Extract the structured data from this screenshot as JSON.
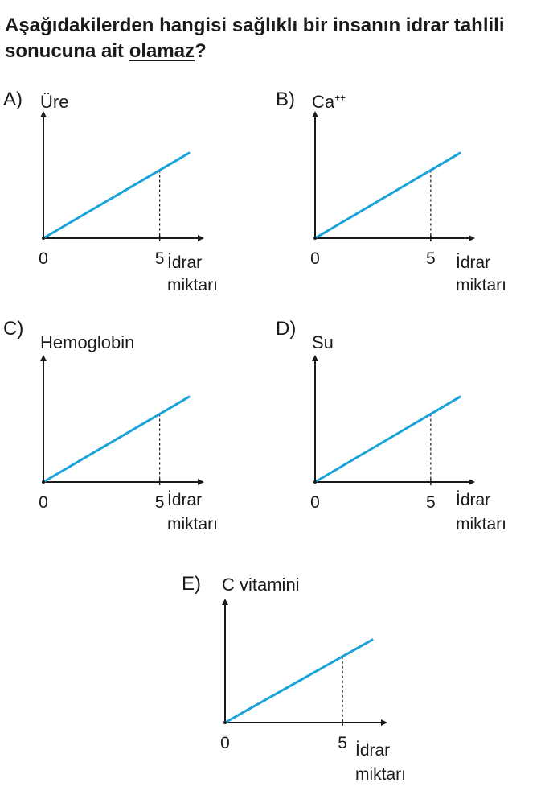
{
  "question": {
    "text_before": "Aşağıdakilerden hangisi sağlıklı bir insanın idrar tahlili sonucuna ait ",
    "underlined": "olamaz",
    "text_after": "?"
  },
  "colors": {
    "line": "#1aa3d9",
    "axis": "#1a1a1a"
  },
  "chart_data": [
    {
      "type": "line",
      "option": "A)",
      "ylabel": "Üre",
      "ylabel_sup": "",
      "xlabel_line1": "İdrar",
      "xlabel_line2": "miktarı",
      "x_ticks": [
        "0",
        "5"
      ],
      "x": [
        0,
        5
      ],
      "y": [
        0,
        3
      ]
    },
    {
      "type": "line",
      "option": "B)",
      "ylabel": "Ca",
      "ylabel_sup": "++",
      "xlabel_line1": "İdrar",
      "xlabel_line2": "miktarı",
      "x_ticks": [
        "0",
        "5"
      ],
      "x": [
        0,
        5
      ],
      "y": [
        0,
        3
      ]
    },
    {
      "type": "line",
      "option": "C)",
      "ylabel": "Hemoglobin",
      "ylabel_sup": "",
      "xlabel_line1": "İdrar",
      "xlabel_line2": "miktarı",
      "x_ticks": [
        "0",
        "5"
      ],
      "x": [
        0,
        5
      ],
      "y": [
        0,
        3
      ]
    },
    {
      "type": "line",
      "option": "D)",
      "ylabel": "Su",
      "ylabel_sup": "",
      "xlabel_line1": "İdrar",
      "xlabel_line2": "miktarı",
      "x_ticks": [
        "0",
        "5"
      ],
      "x": [
        0,
        5
      ],
      "y": [
        0,
        3
      ]
    },
    {
      "type": "line",
      "option": "E)",
      "ylabel": "C vitamini",
      "ylabel_sup": "",
      "xlabel_line1": "İdrar",
      "xlabel_line2": "miktarı",
      "x_ticks": [
        "0",
        "5"
      ],
      "x": [
        0,
        5
      ],
      "y": [
        0,
        3
      ]
    }
  ]
}
